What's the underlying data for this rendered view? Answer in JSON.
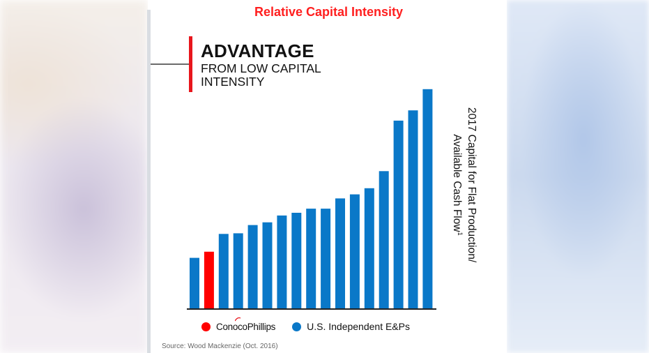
{
  "page_title": "Relative Capital Intensity",
  "headline": {
    "title": "ADVANTAGE",
    "subtitle": "FROM LOW CAPITAL INTENSITY"
  },
  "colors": {
    "title_red": "#ff1f1f",
    "conocophillips_red": "#ff0000",
    "peer_blue": "#0a78c8",
    "accent_red": "#e8161c"
  },
  "chart_data": {
    "type": "bar",
    "ylabel": "2017 Capital for Flat Production/ Available Cash Flow",
    "ylabel_line1": "2017 Capital for Flat Production/",
    "ylabel_line2": "Available Cash Flow",
    "ylabel_superscript": "1",
    "grid": false,
    "y_axis_ticks_shown": false,
    "series": [
      {
        "name": "ConocoPhillips",
        "color": "#ff0000"
      },
      {
        "name": "U.S. Independent E&Ps",
        "color": "#0a78c8"
      }
    ],
    "bars": [
      {
        "value": 75,
        "series": "U.S. Independent E&Ps"
      },
      {
        "value": 84,
        "series": "ConocoPhillips"
      },
      {
        "value": 110,
        "series": "U.S. Independent E&Ps"
      },
      {
        "value": 111,
        "series": "U.S. Independent E&Ps"
      },
      {
        "value": 123,
        "series": "U.S. Independent E&Ps"
      },
      {
        "value": 127,
        "series": "U.S. Independent E&Ps"
      },
      {
        "value": 137,
        "series": "U.S. Independent E&Ps"
      },
      {
        "value": 141,
        "series": "U.S. Independent E&Ps"
      },
      {
        "value": 147,
        "series": "U.S. Independent E&Ps"
      },
      {
        "value": 147,
        "series": "U.S. Independent E&Ps"
      },
      {
        "value": 162,
        "series": "U.S. Independent E&Ps"
      },
      {
        "value": 168,
        "series": "U.S. Independent E&Ps"
      },
      {
        "value": 177,
        "series": "U.S. Independent E&Ps"
      },
      {
        "value": 202,
        "series": "U.S. Independent E&Ps"
      },
      {
        "value": 276,
        "series": "U.S. Independent E&Ps"
      },
      {
        "value": 291,
        "series": "U.S. Independent E&Ps"
      },
      {
        "value": 322,
        "series": "U.S. Independent E&Ps"
      }
    ],
    "ylim": [
      0,
      330
    ],
    "legend_placement": "bottom"
  },
  "legend": {
    "conocophillips_label": "ConocoPhillips",
    "peers_label": "U.S. Independent E&Ps"
  },
  "source": "Source: Wood Mackenzie (Oct. 2016)"
}
